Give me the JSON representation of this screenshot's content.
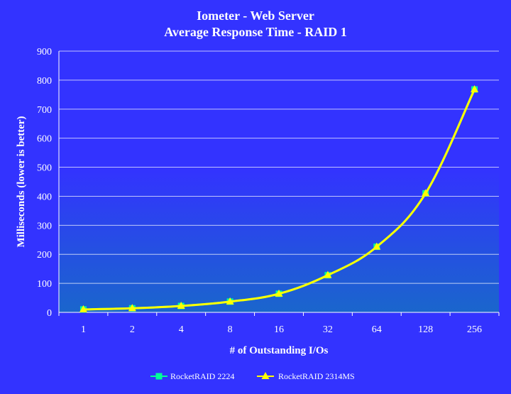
{
  "chart_data": {
    "type": "line",
    "title": "Iometer - Web Server",
    "subtitle": "Average Response Time - RAID 1",
    "xlabel": "# of Outstanding I/Os",
    "ylabel": "Milliseconds (lower is better)",
    "categories": [
      "1",
      "2",
      "4",
      "8",
      "16",
      "32",
      "64",
      "128",
      "256"
    ],
    "ylim": [
      0,
      900
    ],
    "yticks": [
      0,
      100,
      200,
      300,
      400,
      500,
      600,
      700,
      800,
      900
    ],
    "grid": true,
    "legend_position": "bottom",
    "series": [
      {
        "name": "RocketRAID 2224",
        "marker": "square",
        "color": "#00ff99",
        "values": [
          10,
          14,
          22,
          37,
          64,
          128,
          226,
          410,
          768
        ]
      },
      {
        "name": "RocketRAID 2314MS",
        "marker": "triangle",
        "color": "#ffff00",
        "values": [
          10,
          14,
          22,
          37,
          64,
          128,
          226,
          410,
          768
        ]
      }
    ],
    "colors": {
      "background": "#3333ff",
      "plot_top": "#3333ff",
      "plot_bottom": "#1a66cc",
      "grid": "#ffffff",
      "text": "#ffffff"
    }
  }
}
